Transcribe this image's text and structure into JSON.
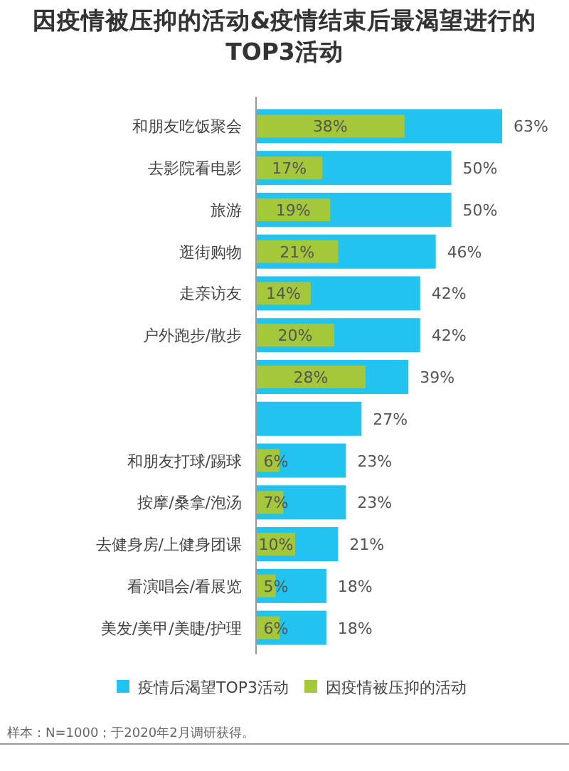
{
  "chart_data": {
    "type": "bar",
    "orientation": "horizontal",
    "title": "因疫情被压抑的活动&疫情结束后最渴望进行的TOP3活动",
    "categories": [
      "和朋友吃饭聚会",
      "去影院看电影",
      "旅游",
      "逛街购物",
      "走亲访友",
      "户外跑步/散步",
      null,
      null,
      "和朋友打球/踢球",
      "按摩/桑拿/泡汤",
      "去健身房/上健身团课",
      "看演唱会/看展览",
      "美发/美甲/美睫/护理"
    ],
    "series": [
      {
        "name": "疫情后渴望TOP3活动",
        "color": "#22c3ee",
        "values": [
          63,
          50,
          50,
          46,
          42,
          42,
          39,
          27,
          23,
          23,
          21,
          18,
          18
        ],
        "value_labels": [
          "63%",
          "50%",
          "50%",
          "46%",
          "42%",
          "42%",
          "39%",
          "27%",
          "23%",
          "23%",
          "21%",
          "18%",
          "18%"
        ]
      },
      {
        "name": "因疫情被压抑的活动",
        "color": "#a5c83a",
        "values": [
          38,
          17,
          19,
          21,
          14,
          20,
          28,
          null,
          6,
          7,
          10,
          5,
          6
        ],
        "value_labels": [
          "38%",
          "17%",
          "19%",
          "21%",
          "14%",
          "20%",
          "28%",
          null,
          "6%",
          "7%",
          "10%",
          "5%",
          "6%"
        ]
      }
    ],
    "legend": "bottom",
    "annotations": [
      "样本：N=1000；于2020年2月调研获得。"
    ]
  }
}
